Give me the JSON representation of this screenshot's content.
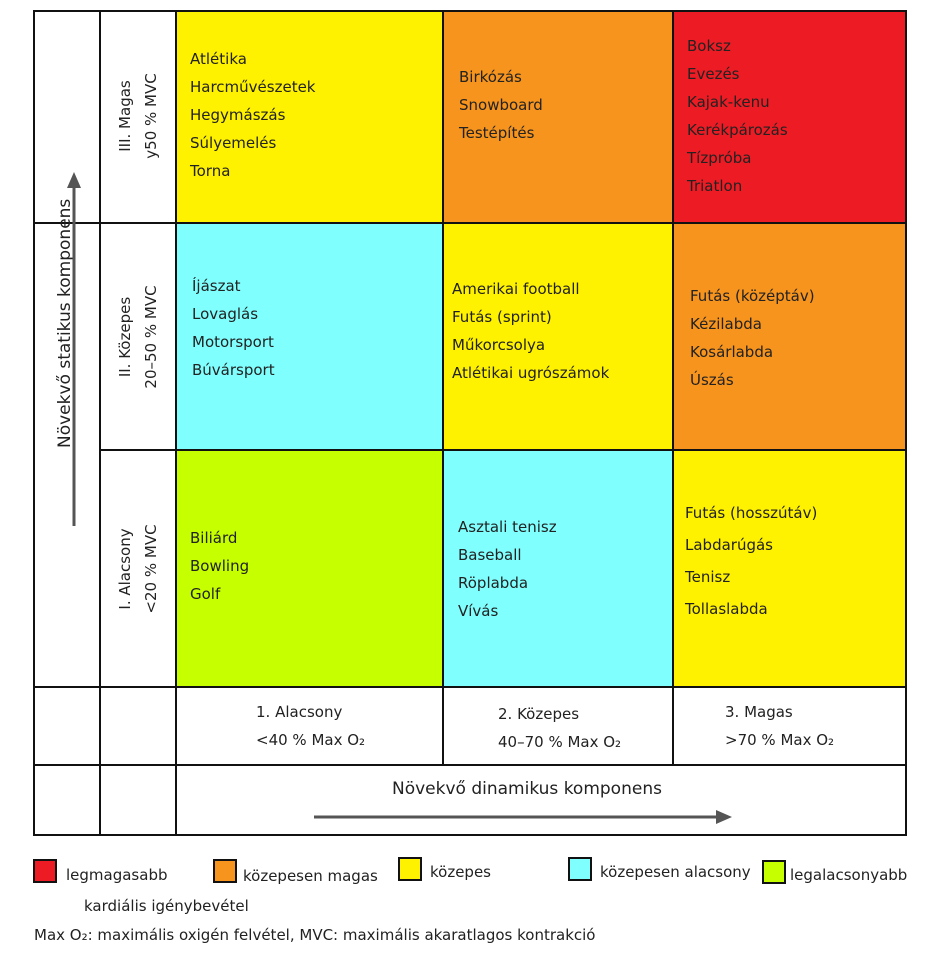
{
  "axes": {
    "y_label": "Növekvő statikus komponens",
    "x_label": "Növekvő dinamikus komponens"
  },
  "rows": [
    {
      "name": "III. Magas",
      "range": "y50 % MVC"
    },
    {
      "name": "II. Közepes",
      "range": "20–50 % MVC"
    },
    {
      "name": "I. Alacsony",
      "range": "<20 % MVC"
    }
  ],
  "columns": [
    {
      "name": "1. Alacsony",
      "range": "<40 % Max O₂"
    },
    {
      "name": "2. Közepes",
      "range": "40–70 % Max O₂"
    },
    {
      "name": "3. Magas",
      "range": ">70 % Max O₂"
    }
  ],
  "colors": {
    "red": "#ED1C24",
    "orange": "#F7941D",
    "yellow": "#FFF200",
    "cyan": "#80FFFF",
    "green": "#C6FF00"
  },
  "cells": {
    "high_low": {
      "color": "yellow",
      "items": [
        "Atlétika",
        "Harcművészetek",
        "Hegymászás",
        "Súlyemelés",
        "Torna"
      ]
    },
    "high_mid": {
      "color": "orange",
      "items": [
        "Birkózás",
        "Snowboard",
        "Testépítés"
      ]
    },
    "high_high": {
      "color": "red",
      "items": [
        "Boksz",
        "Evezés",
        "Kajak-kenu",
        "Kerékpározás",
        "Tízpróba",
        "Triatlon"
      ]
    },
    "mid_low": {
      "color": "cyan",
      "items": [
        "Íjászat",
        "Lovaglás",
        "Motorsport",
        "Búvársport"
      ]
    },
    "mid_mid": {
      "color": "yellow",
      "items": [
        "Amerikai football",
        "Futás (sprint)",
        "Műkorcsolya",
        "Atlétikai ugrószámok"
      ]
    },
    "mid_high": {
      "color": "orange",
      "items": [
        "Futás (középtáv)",
        "Kézilabda",
        "Kosárlabda",
        "Úszás"
      ]
    },
    "low_low": {
      "color": "green",
      "items": [
        "Biliárd",
        "Bowling",
        "Golf"
      ]
    },
    "low_mid": {
      "color": "cyan",
      "items": [
        "Asztali tenisz",
        "Baseball",
        "Röplabda",
        "Vívás"
      ]
    },
    "low_high": {
      "color": "yellow",
      "items": [
        "Futás (hosszútáv)",
        "Labdarúgás",
        "Tenisz",
        "Tollaslabda"
      ]
    }
  },
  "legend": {
    "items": [
      {
        "label": "legmagasabb",
        "color": "red"
      },
      {
        "label": "közepesen magas",
        "color": "orange"
      },
      {
        "label": "közepes",
        "color": "yellow"
      },
      {
        "label": "közepesen alacsony",
        "color": "cyan"
      },
      {
        "label": "legalacsonyabb",
        "color": "green"
      }
    ],
    "caption": "kardiális igénybevétel"
  },
  "footnote": "Max O₂: maximális oxigén felvétel, MVC: maximális akaratlagos kontrakció"
}
